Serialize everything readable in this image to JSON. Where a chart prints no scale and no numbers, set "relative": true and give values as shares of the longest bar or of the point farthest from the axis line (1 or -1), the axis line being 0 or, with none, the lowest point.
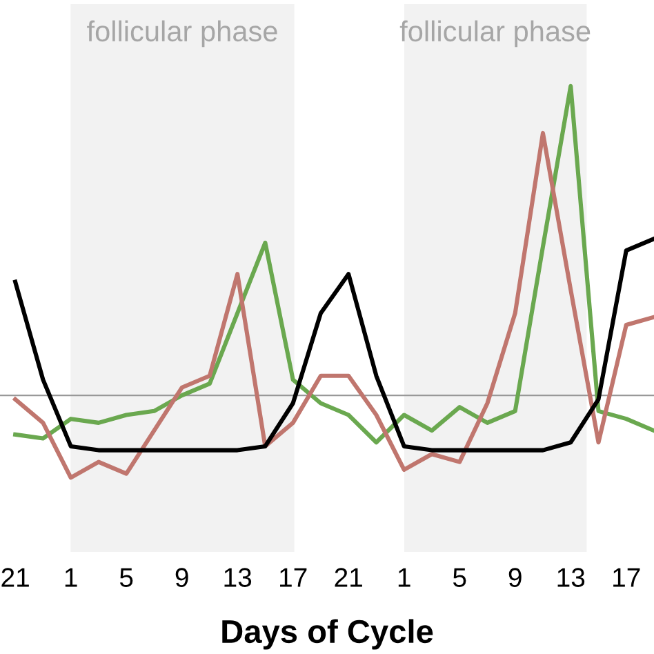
{
  "chart_data": {
    "type": "line",
    "relative": true,
    "xlabel": "Days of Cycle",
    "categories": [
      "21",
      null,
      "1",
      null,
      "5",
      null,
      "9",
      null,
      "13",
      null,
      "17",
      null,
      "21",
      null,
      "1",
      null,
      "5",
      null,
      "9",
      null,
      "13",
      null,
      "17",
      null
    ],
    "series": [
      {
        "color": "#6aa84f",
        "values": [
          0.11,
          0.1,
          0.15,
          0.14,
          0.16,
          0.17,
          0.21,
          0.24,
          0.42,
          0.6,
          0.25,
          0.19,
          0.16,
          0.09,
          0.16,
          0.12,
          0.18,
          0.14,
          0.17,
          0.59,
          1.0,
          0.17,
          0.15,
          0.12
        ]
      },
      {
        "color": "#c0766e",
        "values": [
          0.2,
          0.14,
          0.0,
          0.04,
          0.01,
          0.12,
          0.23,
          0.26,
          0.52,
          0.08,
          0.14,
          0.26,
          0.26,
          0.16,
          0.02,
          0.06,
          0.04,
          0.19,
          0.42,
          0.88,
          0.48,
          0.09,
          0.39,
          0.41
        ]
      },
      {
        "color": "#000000",
        "values": [
          0.5,
          0.25,
          0.08,
          0.07,
          0.07,
          0.07,
          0.07,
          0.07,
          0.07,
          0.08,
          0.19,
          0.42,
          0.52,
          0.26,
          0.08,
          0.07,
          0.07,
          0.07,
          0.07,
          0.07,
          0.09,
          0.2,
          0.58,
          0.61
        ]
      }
    ],
    "annotations": [
      "follicular phase",
      "follicular phase"
    ],
    "ref_lines": [
      {
        "axis": "y",
        "value": 0.21,
        "color": "#999999"
      }
    ],
    "grid": false,
    "legend": false
  }
}
